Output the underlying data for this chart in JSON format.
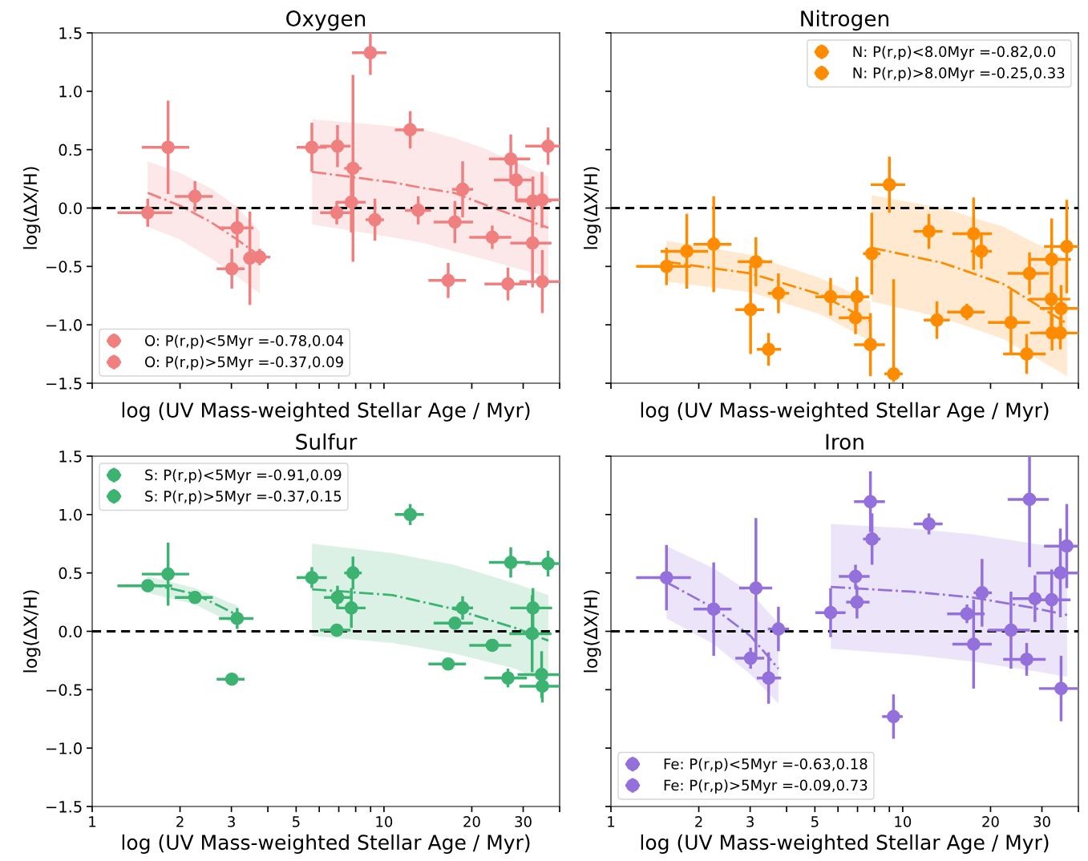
{
  "chart_data": [
    {
      "type": "scatter",
      "title": "Oxygen",
      "xlabel": "log (UV Mass-weighted Stellar Age / Myr)",
      "ylabel": "log(ΔX/H)",
      "log": "x",
      "xlim": [
        1,
        40
      ],
      "ylim": [
        -1.5,
        1.5
      ],
      "tick_labels": "y",
      "legend": "bottom left",
      "xticks": [
        1,
        2,
        3,
        {
          "value": 4,
          "label": null
        },
        5,
        {
          "value": 6,
          "label": null
        },
        {
          "value": 7,
          "label": null
        },
        {
          "value": 8,
          "label": null
        },
        {
          "value": 9,
          "label": null
        },
        10,
        20,
        30,
        {
          "value": 40,
          "label": null
        }
      ],
      "yticks": [
        {
          "value": -1.5,
          "label": "−1.5"
        },
        {
          "value": -1.0,
          "label": "−1.0"
        },
        {
          "value": -0.5,
          "label": "−0.5"
        },
        {
          "value": 0,
          "label": "0.0"
        },
        {
          "value": 0.5,
          "label": "0.5"
        },
        {
          "value": 1,
          "label": "1.0"
        },
        {
          "value": 1.5,
          "label": "1.5"
        }
      ],
      "ref_lines": [
        {
          "axis": "y",
          "value": 0,
          "color": "#000000",
          "line_style": "dashed"
        }
      ],
      "series": [
        {
          "name": "O: P(r,p)<5Myr =-0.78,0.04",
          "color": "#f08080",
          "x": [
            1.55,
            1.82,
            2.25,
            3.14,
            3.01,
            3.47,
            3.75
          ],
          "values": [
            -0.04,
            0.52,
            0.1,
            -0.17,
            -0.52,
            -0.43,
            -0.42
          ],
          "errors": [
            0.12,
            0.4,
            0.13,
            0.17,
            0.17,
            0.4,
            0.07
          ],
          "xerrors": [
            [
              1.22,
              1.88
            ],
            [
              1.48,
              2.15
            ],
            [
              1.92,
              2.59
            ],
            [
              2.72,
              3.57
            ],
            [
              2.67,
              3.33
            ],
            [
              3.3,
              3.47
            ],
            [
              3.75,
              4.08
            ]
          ],
          "marker": "circle"
        },
        {
          "name": "O: P(r,p)>5Myr =-0.37,0.09",
          "color": "#f08080",
          "x": [
            5.66,
            6.93,
            7.83,
            7.73,
            6.89,
            8.98,
            9.31,
            12.3,
            13.1,
            18.6,
            17.5,
            16.6,
            23.5,
            27.2,
            28.4,
            26.6,
            32.4,
            34.8,
            32.3,
            34.9,
            36.5
          ],
          "values": [
            0.52,
            0.53,
            0.34,
            0.05,
            -0.04,
            1.33,
            -0.1,
            0.67,
            -0.02,
            0.16,
            -0.12,
            -0.62,
            -0.25,
            0.42,
            0.24,
            -0.65,
            0.06,
            0.07,
            -0.3,
            -0.63,
            0.53
          ],
          "errors": [
            0.21,
            0.18,
            0.8,
            0.26,
            0.1,
            0.19,
            0.18,
            0.16,
            0.12,
            0.24,
            0.18,
            0.15,
            0.1,
            0.21,
            0.18,
            0.14,
            0.21,
            0.24,
            0.38,
            0.27,
            0.16
          ],
          "xerrors": [
            [
              5.02,
              6.37
            ],
            [
              6.04,
              7.68
            ],
            [
              7.31,
              8.39
            ],
            [
              6.89,
              8.65
            ],
            [
              6.04,
              7.68
            ],
            [
              7.77,
              10.2
            ],
            [
              8.65,
              10.0
            ],
            [
              10.9,
              13.7
            ],
            [
              11.8,
              14.5
            ],
            [
              17.1,
              20.2
            ],
            [
              14.8,
              20.2
            ],
            [
              14.2,
              19.1
            ],
            [
              19.6,
              27.3
            ],
            [
              22.9,
              31.7
            ],
            [
              23.8,
              32.6
            ],
            [
              22.1,
              30.9
            ],
            [
              28.4,
              37.5
            ],
            [
              28.7,
              40
            ],
            [
              27.1,
              37.5
            ],
            [
              29.1,
              40
            ],
            [
              30.5,
              40
            ]
          ],
          "marker": "circle"
        },
        {
          "type": "line",
          "color": "#f08080",
          "line_style": "dashdot",
          "x": [
            1.55,
            2.0,
            2.55,
            3.1,
            3.75
          ],
          "values": [
            0.13,
            0.02,
            -0.12,
            -0.26,
            -0.41
          ],
          "upper": [
            0.4,
            0.3,
            0.17,
            0.02,
            -0.2
          ],
          "lower": [
            -0.16,
            -0.27,
            -0.43,
            -0.58,
            -0.73
          ]
        },
        {
          "type": "line",
          "color": "#f08080",
          "line_style": "dashdot",
          "x": [
            5.67,
            10.7,
            13.7,
            17.4,
            22.1,
            36.6
          ],
          "values": [
            0.31,
            0.22,
            0.17,
            0.13,
            0.03,
            -0.17
          ],
          "upper": [
            0.76,
            0.7,
            0.67,
            0.6,
            0.51,
            0.27
          ],
          "lower": [
            -0.14,
            -0.25,
            -0.3,
            -0.37,
            -0.44,
            -0.59
          ]
        }
      ]
    },
    {
      "type": "scatter",
      "title": "Nitrogen",
      "xlabel": "log (UV Mass-weighted Stellar Age / Myr)",
      "ylabel": "log(ΔX/H)",
      "log": "x",
      "xlim": [
        1,
        40
      ],
      "ylim": [
        -1.5,
        1.5
      ],
      "tick_labels": false,
      "legend": "top right",
      "xticks": [
        1,
        2,
        3,
        {
          "value": 4,
          "label": null
        },
        5,
        {
          "value": 6,
          "label": null
        },
        {
          "value": 7,
          "label": null
        },
        {
          "value": 8,
          "label": null
        },
        {
          "value": 9,
          "label": null
        },
        10,
        20,
        30,
        {
          "value": 40,
          "label": null
        }
      ],
      "yticks": [
        {
          "value": -1.5,
          "label": null
        },
        {
          "value": -1.0,
          "label": null
        },
        {
          "value": -0.5,
          "label": null
        },
        {
          "value": 0,
          "label": null
        },
        {
          "value": 0.5,
          "label": null
        },
        {
          "value": 1,
          "label": null
        },
        {
          "value": 1.5,
          "label": null
        }
      ],
      "ref_lines": [
        {
          "axis": "y",
          "value": 0,
          "color": "#000000",
          "line_style": "dashed"
        }
      ],
      "series": [
        {
          "name": "N: P(r,p)<8.0Myr =-0.82,0.0",
          "color": "#ff8c00",
          "x": [
            1.55,
            1.82,
            2.25,
            3.14,
            3.01,
            3.47,
            3.75,
            5.66,
            6.97,
            6.89,
            7.75,
            7.83
          ],
          "values": [
            -0.5,
            -0.37,
            -0.31,
            -0.46,
            -0.87,
            -1.21,
            -0.73,
            -0.76,
            -0.76,
            -0.94,
            -1.17,
            -0.39
          ],
          "errors": [
            0.16,
            0.32,
            0.41,
            0.21,
            0.38,
            0.14,
            0.17,
            0.16,
            0.17,
            0.14,
            0.27,
            0.35
          ],
          "xerrors": [
            [
              1.22,
              1.88
            ],
            [
              1.48,
              2.15
            ],
            [
              1.92,
              2.59
            ],
            [
              2.72,
              3.57
            ],
            [
              2.67,
              3.35
            ],
            [
              3.16,
              3.83
            ],
            [
              3.45,
              4.08
            ],
            [
              5.02,
              6.37
            ],
            [
              6.04,
              7.68
            ],
            [
              6.04,
              7.68
            ],
            [
              6.81,
              8.69
            ],
            [
              7.31,
              8.39
            ]
          ],
          "marker": "circle"
        },
        {
          "name": "N: P(r,p)>8.0Myr =-0.25,0.33",
          "color": "#ff8c00",
          "x": [
            9.0,
            9.31,
            12.3,
            13.1,
            16.6,
            17.5,
            18.6,
            23.5,
            27.2,
            26.6,
            32.4,
            32.3,
            34.9,
            32.5,
            34.7,
            36.5
          ],
          "values": [
            0.2,
            -1.42,
            -0.2,
            -0.96,
            -0.89,
            -0.22,
            -0.37,
            -0.98,
            -0.56,
            -1.25,
            -0.44,
            -0.78,
            -0.86,
            -1.07,
            -1.07,
            -0.33
          ],
          "errors": [
            0.24,
            [
              -1.49,
              -0.61
            ],
            0.15,
            0.16,
            0.07,
            0.31,
            0.15,
            0.28,
            0.18,
            0.17,
            0.35,
            0.25,
            0.2,
            0.15,
            0.14,
            0.4
          ],
          "xerrors": [
            [
              7.77,
              10.2
            ],
            [
              8.65,
              10.0
            ],
            [
              10.9,
              13.7
            ],
            [
              11.8,
              14.5
            ],
            [
              14.2,
              19.1
            ],
            [
              14.8,
              20.2
            ],
            [
              17.1,
              20.2
            ],
            [
              19.6,
              27.3
            ],
            [
              22.9,
              31.7
            ],
            [
              22.1,
              30.9
            ],
            [
              27.1,
              37.7
            ],
            [
              27.1,
              37.5
            ],
            [
              29.5,
              40
            ],
            [
              27.3,
              37.5
            ],
            [
              28.7,
              40
            ],
            [
              30.5,
              40
            ]
          ],
          "marker": "circle"
        },
        {
          "type": "line",
          "color": "#ff8c00",
          "line_style": "dashdot",
          "x": [
            1.55,
            3.01,
            5.22,
            7.75
          ],
          "values": [
            -0.46,
            -0.56,
            -0.74,
            -0.97
          ],
          "upper": [
            -0.28,
            -0.4,
            -0.6,
            -0.8
          ],
          "lower": [
            -0.63,
            -0.72,
            -0.91,
            -1.14
          ]
        },
        {
          "type": "line",
          "color": "#ff8c00",
          "line_style": "dashdot",
          "x": [
            7.83,
            13.7,
            22.1,
            36.6
          ],
          "values": [
            -0.34,
            -0.47,
            -0.65,
            -0.99
          ],
          "upper": [
            0.11,
            0.0,
            -0.16,
            -0.44
          ],
          "lower": [
            -0.8,
            -0.94,
            -1.12,
            -1.44
          ]
        }
      ]
    },
    {
      "type": "scatter",
      "title": "Sulfur",
      "xlabel": "log (UV Mass-weighted Stellar Age / Myr)",
      "ylabel": "log(ΔX/H)",
      "log": "x",
      "xlim": [
        1,
        40
      ],
      "ylim": [
        -1.5,
        1.5
      ],
      "legend": "top left",
      "xticks": [
        1,
        2,
        3,
        {
          "value": 4,
          "label": null
        },
        5,
        {
          "value": 6,
          "label": null
        },
        {
          "value": 7,
          "label": null
        },
        {
          "value": 8,
          "label": null
        },
        {
          "value": 9,
          "label": null
        },
        10,
        20,
        30,
        {
          "value": 40,
          "label": null
        }
      ],
      "yticks": [
        {
          "value": -1.5,
          "label": "−1.5"
        },
        {
          "value": -1.0,
          "label": "−1.0"
        },
        {
          "value": -0.5,
          "label": "−0.5"
        },
        {
          "value": 0,
          "label": "0.0"
        },
        {
          "value": 0.5,
          "label": "0.5"
        },
        {
          "value": 1,
          "label": "1.0"
        },
        {
          "value": 1.5,
          "label": "1.5"
        }
      ],
      "ref_lines": [
        {
          "axis": "y",
          "value": 0,
          "color": "#000000",
          "line_style": "dashed"
        }
      ],
      "series": [
        {
          "name": "S: P(r,p)<5Myr =-0.91,0.09",
          "color": "#3cb371",
          "x": [
            1.55,
            1.82,
            2.25,
            3.14,
            3.01
          ],
          "values": [
            0.39,
            0.49,
            0.29,
            0.11,
            -0.41
          ],
          "errors": [
            0.05,
            0.27,
            0.04,
            0.09,
            null
          ],
          "xerrors": [
            [
              1.22,
              1.88
            ],
            [
              1.48,
              2.15
            ],
            [
              1.92,
              2.59
            ],
            [
              2.72,
              3.57
            ],
            [
              2.67,
              3.33
            ]
          ],
          "marker": "circle"
        },
        {
          "name": "S: P(r,p)>5Myr =-0.37,0.15",
          "color": "#3cb371",
          "x": [
            5.66,
            6.93,
            7.83,
            7.73,
            6.89,
            12.3,
            16.6,
            17.5,
            18.6,
            23.5,
            27.2,
            26.6,
            32.4,
            32.2,
            34.7,
            34.9,
            36.5
          ],
          "values": [
            0.46,
            0.29,
            0.5,
            0.2,
            0.01,
            1.0,
            -0.28,
            0.07,
            0.2,
            -0.12,
            0.59,
            -0.4,
            0.2,
            -0.02,
            -0.37,
            -0.47,
            0.58
          ],
          "errors": [
            0.09,
            0.1,
            0.14,
            0.17,
            null,
            0.09,
            null,
            null,
            0.1,
            null,
            0.13,
            0.08,
            0.17,
            0.33,
            0.2,
            0.14,
            0.11
          ],
          "xerrors": [
            [
              5.02,
              6.37
            ],
            [
              6.23,
              7.68
            ],
            [
              7.31,
              8.39
            ],
            [
              6.89,
              8.65
            ],
            [
              6.04,
              7.68
            ],
            [
              10.9,
              13.7
            ],
            [
              14.2,
              19.1
            ],
            [
              14.8,
              20.2
            ],
            [
              17.1,
              20.2
            ],
            [
              19.6,
              27.3
            ],
            [
              22.9,
              31.7
            ],
            [
              22.1,
              30.9
            ],
            [
              27.1,
              37.7
            ],
            [
              26.9,
              37.5
            ],
            [
              28.7,
              40
            ],
            [
              29.1,
              40
            ],
            [
              30.5,
              40
            ]
          ],
          "marker": "circle"
        },
        {
          "type": "line",
          "color": "#3cb371",
          "line_style": "dashdot",
          "x": [
            1.55,
            2.25,
            3.14
          ],
          "values": [
            0.41,
            0.32,
            0.14
          ],
          "upper": [
            0.47,
            0.37,
            0.22
          ],
          "lower": [
            0.33,
            0.23,
            0.05
          ]
        },
        {
          "type": "line",
          "color": "#3cb371",
          "line_style": "dashdot",
          "x": [
            5.67,
            10.7,
            17.4,
            28.1,
            36.6
          ],
          "values": [
            0.36,
            0.31,
            0.19,
            0.03,
            -0.08
          ],
          "upper": [
            0.75,
            0.67,
            0.57,
            0.41,
            0.31
          ],
          "lower": [
            -0.04,
            -0.1,
            -0.19,
            -0.32,
            -0.45
          ]
        }
      ]
    },
    {
      "type": "scatter",
      "title": "Iron",
      "xlabel": "log (UV Mass-weighted Stellar Age / Myr)",
      "ylabel": "log(ΔX/H)",
      "log": "x",
      "xlim": [
        1,
        40
      ],
      "ylim": [
        -1.5,
        1.5
      ],
      "tick_labels": "x",
      "legend": "bottom left",
      "xticks": [
        1,
        2,
        3,
        {
          "value": 4,
          "label": null
        },
        5,
        {
          "value": 6,
          "label": null
        },
        {
          "value": 7,
          "label": null
        },
        {
          "value": 8,
          "label": null
        },
        {
          "value": 9,
          "label": null
        },
        10,
        20,
        30,
        {
          "value": 40,
          "label": null
        }
      ],
      "yticks": [
        {
          "value": -1.5,
          "label": null
        },
        {
          "value": -1.0,
          "label": null
        },
        {
          "value": -0.5,
          "label": null
        },
        {
          "value": 0,
          "label": null
        },
        {
          "value": 0.5,
          "label": null
        },
        {
          "value": 1,
          "label": null
        },
        {
          "value": 1.5,
          "label": null
        }
      ],
      "ref_lines": [
        {
          "axis": "y",
          "value": 0,
          "color": "#000000",
          "line_style": "dashed"
        }
      ],
      "series": [
        {
          "name": "Fe: P(r,p)<5Myr =-0.63,0.18",
          "color": "#9370db",
          "x": [
            1.55,
            2.25,
            3.14,
            3.01,
            3.47,
            3.75
          ],
          "values": [
            0.46,
            0.19,
            0.37,
            -0.23,
            -0.4,
            0.02
          ],
          "errors": [
            0.28,
            0.4,
            0.6,
            0.09,
            0.22,
            0.19
          ],
          "xerrors": [
            [
              1.22,
              1.88
            ],
            [
              1.92,
              2.59
            ],
            [
              2.75,
              3.57
            ],
            [
              2.67,
              3.35
            ],
            [
              3.16,
              3.83
            ],
            [
              3.45,
              4.08
            ]
          ],
          "marker": "circle"
        },
        {
          "name": "Fe: P(r,p)>5Myr =-0.09,0.73",
          "color": "#9370db",
          "x": [
            5.66,
            6.89,
            6.97,
            7.75,
            7.85,
            9.3,
            12.3,
            16.6,
            17.5,
            18.7,
            23.5,
            27.2,
            26.6,
            28.4,
            32.4,
            34.7,
            36.5,
            34.9
          ],
          "values": [
            0.16,
            0.47,
            0.25,
            1.11,
            0.79,
            -0.73,
            0.92,
            0.15,
            -0.11,
            0.33,
            0.01,
            1.13,
            -0.24,
            0.28,
            0.27,
            0.5,
            0.73,
            -0.49
          ],
          "errors": [
            0.21,
            0.1,
            0.14,
            0.26,
            0.22,
            0.19,
            0.09,
            0.08,
            0.38,
            0.29,
            0.33,
            [
              0.55,
              1.5
            ],
            0.14,
            0.2,
            0.26,
            0.38,
            0.36,
            0.28
          ],
          "xerrors": [
            [
              5.02,
              6.37
            ],
            [
              6.04,
              7.7
            ],
            [
              6.4,
              7.7
            ],
            [
              6.81,
              8.69
            ],
            [
              7.31,
              8.39
            ],
            [
              8.5,
              10.0
            ],
            [
              10.9,
              13.7
            ],
            [
              14.2,
              19.1
            ],
            [
              14.8,
              20.2
            ],
            [
              17.5,
              20.2
            ],
            [
              19.6,
              27.3
            ],
            [
              22.9,
              31.7
            ],
            [
              22.1,
              30.9
            ],
            [
              23.8,
              28.4
            ],
            [
              27.3,
              37.6
            ],
            [
              28.7,
              40
            ],
            [
              30.5,
              40
            ],
            [
              29.3,
              40
            ]
          ],
          "marker": "circle"
        },
        {
          "type": "line",
          "color": "#9370db",
          "line_style": "dashdot",
          "x": [
            1.55,
            2.25,
            3.01,
            3.75
          ],
          "values": [
            0.42,
            0.2,
            -0.04,
            -0.32
          ],
          "upper": [
            0.73,
            0.54,
            0.33,
            0.07
          ],
          "lower": [
            0.11,
            -0.11,
            -0.37,
            -0.62
          ]
        },
        {
          "type": "line",
          "color": "#9370db",
          "line_style": "dashdot",
          "x": [
            5.67,
            10.7,
            17.4,
            28.1,
            36.6
          ],
          "values": [
            0.38,
            0.34,
            0.29,
            0.2,
            0.14
          ],
          "upper": [
            0.92,
            0.88,
            0.83,
            0.75,
            0.71
          ],
          "lower": [
            -0.15,
            -0.2,
            -0.26,
            -0.34,
            -0.39
          ]
        }
      ]
    }
  ]
}
